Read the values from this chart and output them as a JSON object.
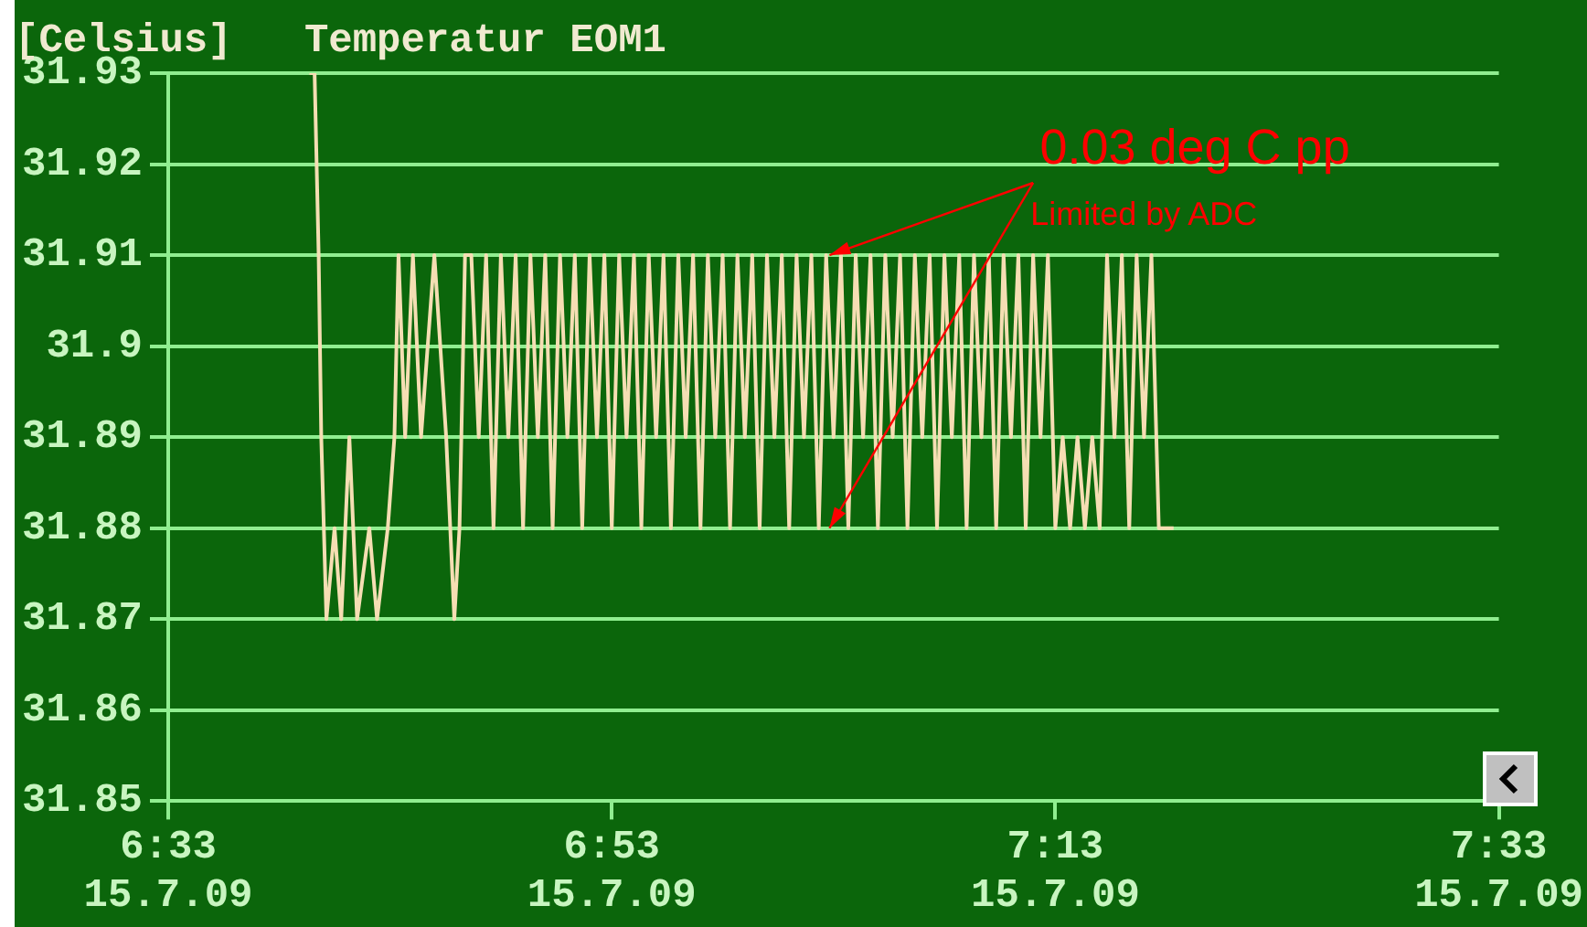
{
  "chart_data": {
    "type": "line",
    "title": "Temperatur EOM1",
    "ylabel": "[Celsius]",
    "annotations": [
      {
        "text": "0.03 deg C pp",
        "x": "--07-15T07:02:49",
        "y": 31.91
      },
      {
        "text": "Limited by ADC",
        "x": "--07-15T07:02:49",
        "y": 31.88
      }
    ],
    "xlim": [
      "--07-15T06:33",
      "--07-15T07:33"
    ],
    "xticks": [
      {
        "value": "--07-15T06:33",
        "label": "6:33 15.7.09"
      },
      {
        "value": "--07-15T06:53",
        "label": "6:53 15.7.09"
      },
      {
        "value": "--07-15T07:13",
        "label": "7:13 15.7.09"
      },
      {
        "value": "--07-15T07:33",
        "label": "7:33 15.7.09"
      }
    ],
    "ylim": [
      31.85,
      31.93
    ],
    "yticks": [
      31.85,
      31.86,
      31.87,
      31.88,
      31.89,
      31.9,
      31.91,
      31.92,
      31.93
    ],
    "grid": "y",
    "legend": false,
    "marker": "none",
    "line_style": "solid",
    "series": [
      {
        "color": "#f5deb3",
        "x": [
          "--07-15T06:39:22",
          "--07-15T06:39:36",
          "--07-15T06:39:47",
          "--07-15T06:39:54",
          "--07-15T06:40:01",
          "--07-15T06:40:08",
          "--07-15T06:40:30",
          "--07-15T06:40:48",
          "--07-15T06:41:10",
          "--07-15T06:41:31",
          "--07-15T06:42:04",
          "--07-15T06:42:25",
          "--07-15T06:42:54",
          "--07-15T06:43:12",
          "--07-15T06:43:23",
          "--07-15T06:43:41",
          "--07-15T06:44:02",
          "--07-15T06:44:24",
          "--07-15T06:45:00",
          "--07-15T06:45:32",
          "--07-15T06:45:54",
          "--07-15T06:46:08",
          "--07-15T06:46:23",
          "--07-15T06:46:40",
          "--07-15T06:47:00",
          "--07-15T06:47:20",
          "--07-15T06:47:40",
          "--07-15T06:48:00",
          "--07-15T06:48:20",
          "--07-15T06:48:40",
          "--07-15T06:49:00",
          "--07-15T06:49:20",
          "--07-15T06:49:40",
          "--07-15T06:50:00",
          "--07-15T06:50:20",
          "--07-15T06:50:40",
          "--07-15T06:51:00",
          "--07-15T06:51:20",
          "--07-15T06:51:40",
          "--07-15T06:52:00",
          "--07-15T06:52:20",
          "--07-15T06:52:40",
          "--07-15T06:53:00",
          "--07-15T06:53:20",
          "--07-15T06:53:40",
          "--07-15T06:54:00",
          "--07-15T06:54:20",
          "--07-15T06:54:40",
          "--07-15T06:55:00",
          "--07-15T06:55:20",
          "--07-15T06:55:40",
          "--07-15T06:56:00",
          "--07-15T06:56:20",
          "--07-15T06:56:40",
          "--07-15T06:57:00",
          "--07-15T06:57:20",
          "--07-15T06:57:40",
          "--07-15T06:58:00",
          "--07-15T06:58:20",
          "--07-15T06:58:40",
          "--07-15T06:59:00",
          "--07-15T06:59:20",
          "--07-15T06:59:40",
          "--07-15T07:00:00",
          "--07-15T07:00:20",
          "--07-15T07:00:40",
          "--07-15T07:01:00",
          "--07-15T07:01:20",
          "--07-15T07:01:40",
          "--07-15T07:02:00",
          "--07-15T07:02:20",
          "--07-15T07:02:40",
          "--07-15T07:03:00",
          "--07-15T07:03:20",
          "--07-15T07:03:40",
          "--07-15T07:04:00",
          "--07-15T07:04:20",
          "--07-15T07:04:40",
          "--07-15T07:05:00",
          "--07-15T07:05:20",
          "--07-15T07:05:40",
          "--07-15T07:06:00",
          "--07-15T07:06:20",
          "--07-15T07:06:40",
          "--07-15T07:07:00",
          "--07-15T07:07:20",
          "--07-15T07:07:40",
          "--07-15T07:08:00",
          "--07-15T07:08:20",
          "--07-15T07:08:40",
          "--07-15T07:09:00",
          "--07-15T07:09:20",
          "--07-15T07:09:40",
          "--07-15T07:10:00",
          "--07-15T07:10:20",
          "--07-15T07:10:40",
          "--07-15T07:11:00",
          "--07-15T07:11:20",
          "--07-15T07:11:40",
          "--07-15T07:12:00",
          "--07-15T07:12:20",
          "--07-15T07:12:40",
          "--07-15T07:13:00",
          "--07-15T07:13:20",
          "--07-15T07:13:40",
          "--07-15T07:14:00",
          "--07-15T07:14:20",
          "--07-15T07:14:40",
          "--07-15T07:15:00",
          "--07-15T07:15:20",
          "--07-15T07:15:40",
          "--07-15T07:16:00",
          "--07-15T07:16:20",
          "--07-15T07:16:40",
          "--07-15T07:17:00",
          "--07-15T07:17:20",
          "--07-15T07:17:40",
          "--07-15T07:18:00",
          "--07-15T07:18:20"
        ],
        "values": [
          31.93,
          31.93,
          31.91,
          31.89,
          31.88,
          31.87,
          31.88,
          31.87,
          31.89,
          31.87,
          31.88,
          31.87,
          31.88,
          31.89,
          31.91,
          31.89,
          31.91,
          31.89,
          31.91,
          31.89,
          31.87,
          31.88,
          31.91,
          31.91,
          31.89,
          31.91,
          31.88,
          31.91,
          31.89,
          31.91,
          31.88,
          31.91,
          31.89,
          31.91,
          31.88,
          31.91,
          31.89,
          31.91,
          31.88,
          31.91,
          31.89,
          31.91,
          31.88,
          31.91,
          31.89,
          31.91,
          31.88,
          31.91,
          31.89,
          31.91,
          31.88,
          31.91,
          31.89,
          31.91,
          31.88,
          31.91,
          31.89,
          31.91,
          31.88,
          31.91,
          31.89,
          31.91,
          31.88,
          31.91,
          31.89,
          31.91,
          31.88,
          31.91,
          31.89,
          31.91,
          31.88,
          31.91,
          31.89,
          31.91,
          31.88,
          31.91,
          31.89,
          31.91,
          31.88,
          31.91,
          31.89,
          31.91,
          31.88,
          31.91,
          31.89,
          31.91,
          31.88,
          31.91,
          31.89,
          31.91,
          31.88,
          31.91,
          31.89,
          31.91,
          31.88,
          31.91,
          31.89,
          31.91,
          31.88,
          31.91,
          31.89,
          31.91,
          31.88,
          31.89,
          31.88,
          31.89,
          31.88,
          31.89,
          31.88,
          31.91,
          31.89,
          31.91,
          31.88,
          31.91,
          31.89,
          31.91,
          31.88,
          31.88,
          31.88
        ]
      }
    ]
  }
}
